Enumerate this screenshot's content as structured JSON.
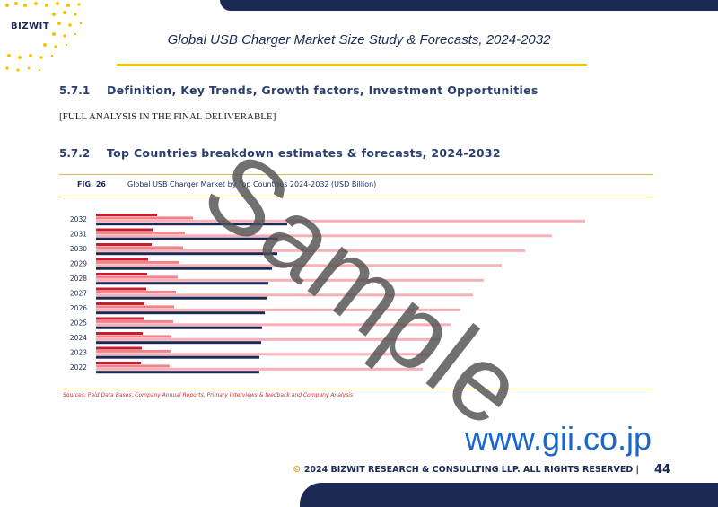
{
  "header": {
    "logo_text": "BIZWIT",
    "report_title": "Global USB Charger Market Size Study & Forecasts, 2024-2032"
  },
  "section_1": {
    "number": "5.7.1",
    "title": "Definition, Key Trends, Growth factors, Investment Opportunities",
    "placeholder": "[FULL ANALYSIS IN THE FINAL DELIVERABLE]"
  },
  "section_2": {
    "number": "5.7.2",
    "title": "Top Countries breakdown estimates & forecasts, 2024-2032"
  },
  "figure": {
    "label": "FIG. 26",
    "caption": "Global USB Charger Market by Top Countries 2024-2032 (USD Billion)",
    "sources": "Sources: Paid Data Bases, Company Annual Reports, Primary Interviews & feedback and Company Analysis"
  },
  "chart_data": {
    "type": "bar",
    "orientation": "horizontal",
    "categories": [
      "2032",
      "2031",
      "2030",
      "2029",
      "2028",
      "2027",
      "2026",
      "2025",
      "2024",
      "2023",
      "2022"
    ],
    "series": [
      {
        "color": "#c81d2e",
        "values": [
          68,
          63,
          62,
          58,
          57,
          56,
          54,
          53,
          52,
          51,
          50
        ]
      },
      {
        "color": "#f2828c",
        "values": [
          108,
          99,
          97,
          93,
          91,
          89,
          87,
          86,
          84,
          83,
          82
        ]
      },
      {
        "color": "#f7b0b6",
        "values": [
          545,
          508,
          478,
          452,
          432,
          420,
          406,
          395,
          383,
          372,
          364
        ]
      },
      {
        "color": "#1b2a55",
        "values": [
          213,
          203,
          202,
          196,
          192,
          190,
          188,
          185,
          184,
          182,
          182
        ]
      }
    ],
    "xlim": [
      0,
      600
    ],
    "legend": "none",
    "grid": false
  },
  "watermark": "Sample",
  "site_url": "www.gii.co.jp",
  "footer": {
    "copyright_symbol": "©",
    "text": "2024 BIZWIT RESEARCH & CONSULLTING LLP. ALL RIGHTS RESERVED |",
    "page_number": "44"
  },
  "colors": {
    "navy": "#1b2a55",
    "gold": "#f5c400",
    "url_blue": "#1a66c9"
  }
}
